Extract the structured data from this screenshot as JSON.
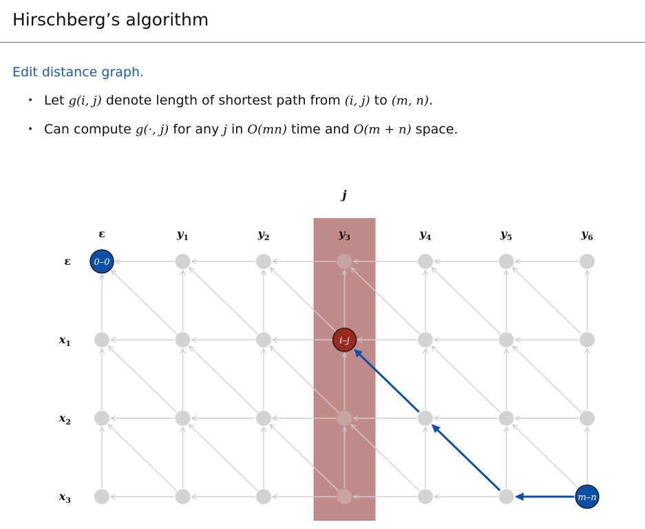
{
  "title": "Hirschberg’s algorithm",
  "subheading": "Edit distance graph.",
  "bullet1": {
    "pre": "Let ",
    "g_ij": "g(i, j)",
    "mid": " denote length of shortest path from ",
    "ij": "(i, j)",
    "to": " to ",
    "mn": "(m, n)",
    "post": "."
  },
  "bullet2": {
    "pre": "Can compute ",
    "g_dot": "g(·, j)",
    "mid1": " for any ",
    "j": "j",
    "mid2": " in ",
    "time": "O(mn)",
    "mid3": " time and ",
    "space": "O(m + n)",
    "post": " space."
  },
  "graph": {
    "column_label": "j",
    "col_labels": [
      "ε",
      "y1",
      "y2",
      "y3",
      "y4",
      "y5",
      "y6"
    ],
    "row_labels": [
      "ε",
      "x1",
      "x2",
      "x3"
    ],
    "start_node_label": "0–0",
    "middle_node_label": "i–j",
    "end_node_label": "m–n",
    "highlight_column": 3,
    "middle_node": [
      1,
      3
    ],
    "end_node": [
      3,
      6
    ],
    "start_node": [
      0,
      0
    ],
    "path": [
      [
        3,
        6
      ],
      [
        3,
        5
      ],
      [
        2,
        4
      ],
      [
        1,
        3
      ]
    ],
    "colors": {
      "edge": "#d0d0d0",
      "node": "#d3d3d3",
      "column_band": "#bf8a87",
      "middle_node": "#9a2a1f",
      "start_end_node": "#0b4fa8",
      "path": "#0b4fa8"
    }
  }
}
